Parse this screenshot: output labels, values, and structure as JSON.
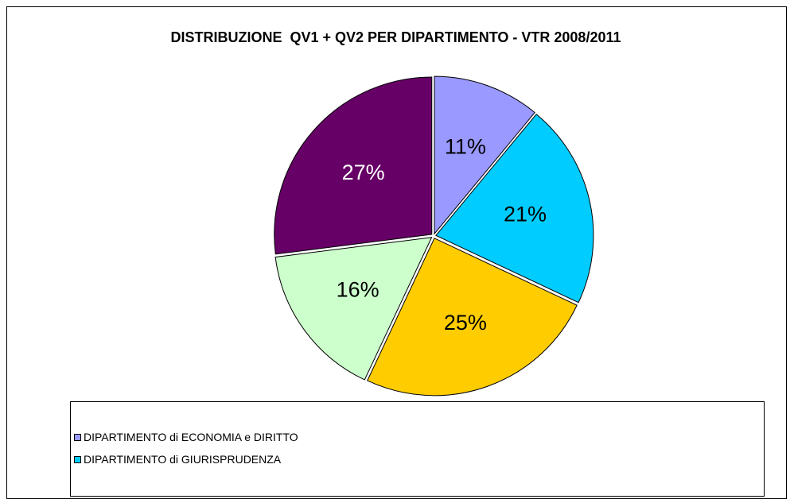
{
  "chart_data": {
    "type": "pie",
    "title": "DISTRIBUZIONE  QV1 + QV2 PER DIPARTIMENTO - VTR 2008/2011",
    "categories": [
      "DIPARTIMENTO di ECONOMIA e DIRITTO",
      "DIPARTIMENTO di GIURISPRUDENZA",
      null,
      null,
      null
    ],
    "values": [
      11,
      21,
      25,
      16,
      27
    ],
    "value_labels": [
      "11%",
      "21%",
      "25%",
      "16%",
      "27%"
    ],
    "colors": [
      "#9999ff",
      "#00ccff",
      "#ffcc00",
      "#ccffcc",
      "#660066"
    ],
    "label_colors": [
      "#000000",
      "#000000",
      "#000000",
      "#000000",
      "#ffffff"
    ]
  }
}
